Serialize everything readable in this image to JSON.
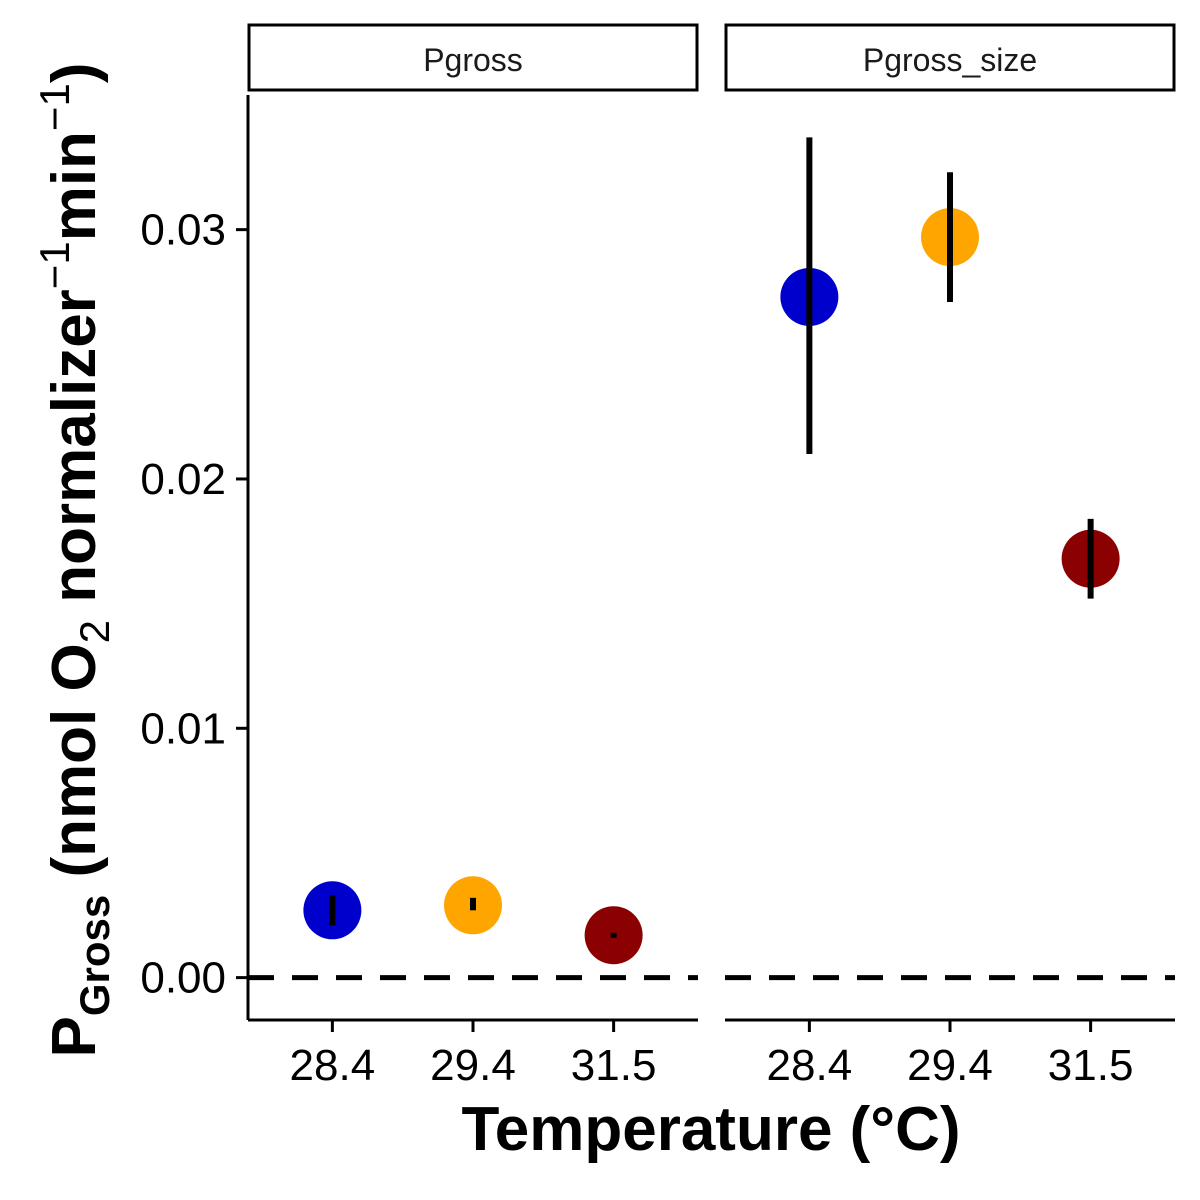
{
  "chart_data": {
    "type": "scatter",
    "xlabel": "Temperature (°C)",
    "ylabel": {
      "p": "P",
      "p_sub": "Gross",
      "open": " (nmol O",
      "o2_sub": "2",
      "mid": " normalizer",
      "exp1": "−1",
      "min": "min",
      "exp2": "−1",
      "close": ")"
    },
    "categories": [
      "28.4",
      "29.4",
      "31.5"
    ],
    "ylim": [
      -0.0017,
      0.0354
    ],
    "yticks": [
      0.0,
      0.01,
      0.02,
      0.03
    ],
    "ytick_labels": [
      "0.00",
      "0.01",
      "0.02",
      "0.03"
    ],
    "reference_line": {
      "y": 0,
      "style": "dashed"
    },
    "point_colors": [
      "#0000CD",
      "#FFA500",
      "#8B0000"
    ],
    "panels": [
      {
        "strip": "Pgross",
        "points": [
          {
            "x": "28.4",
            "y": 0.0027,
            "ymin": 0.0021,
            "ymax": 0.0033
          },
          {
            "x": "29.4",
            "y": 0.0029,
            "ymin": 0.0027,
            "ymax": 0.0032
          },
          {
            "x": "31.5",
            "y": 0.0017,
            "ymin": 0.0016,
            "ymax": 0.0018
          }
        ]
      },
      {
        "strip": "Pgross_size",
        "points": [
          {
            "x": "28.4",
            "y": 0.0273,
            "ymin": 0.021,
            "ymax": 0.0337
          },
          {
            "x": "29.4",
            "y": 0.0297,
            "ymin": 0.0271,
            "ymax": 0.0323
          },
          {
            "x": "31.5",
            "y": 0.0168,
            "ymin": 0.0152,
            "ymax": 0.0184
          }
        ]
      }
    ],
    "grid": false,
    "legend": "none"
  }
}
